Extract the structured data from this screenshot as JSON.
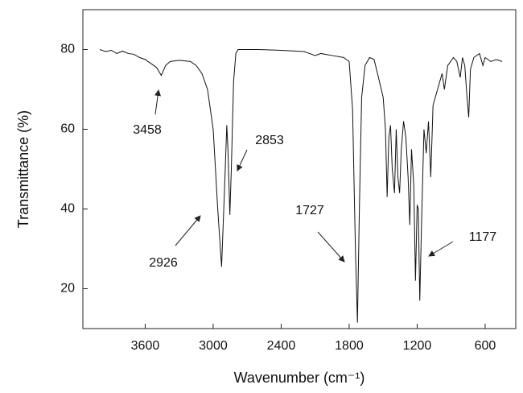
{
  "chart_data": {
    "type": "line",
    "x_label": "Wavenumber (cm⁻¹)",
    "y_label": "Transmittance (%)",
    "xlim": [
      4150,
      330
    ],
    "ylim": [
      10,
      90
    ],
    "xticks": [
      3600,
      3000,
      2400,
      1800,
      1200,
      600
    ],
    "yticks": [
      20,
      40,
      60,
      80
    ],
    "annotations": [
      "3458",
      "2853",
      "2926",
      "1727",
      "1177"
    ],
    "series": [
      {
        "color": "#111111",
        "x": [
          4000,
          3950,
          3900,
          3850,
          3800,
          3750,
          3700,
          3650,
          3600,
          3550,
          3500,
          3458,
          3420,
          3380,
          3300,
          3200,
          3150,
          3100,
          3050,
          3000,
          2960,
          2926,
          2900,
          2880,
          2870,
          2853,
          2840,
          2820,
          2800,
          2780,
          2600,
          2400,
          2200,
          2100,
          2050,
          1950,
          1850,
          1800,
          1770,
          1745,
          1727,
          1710,
          1690,
          1660,
          1620,
          1580,
          1550,
          1500,
          1480,
          1465,
          1450,
          1435,
          1420,
          1400,
          1385,
          1370,
          1355,
          1340,
          1320,
          1300,
          1280,
          1265,
          1250,
          1230,
          1215,
          1200,
          1190,
          1177,
          1160,
          1140,
          1120,
          1100,
          1080,
          1060,
          1020,
          980,
          960,
          930,
          880,
          850,
          820,
          800,
          780,
          760,
          745,
          730,
          700,
          650,
          620,
          600,
          550,
          500,
          450
        ],
        "values": [
          80,
          79.5,
          79.8,
          79,
          79.6,
          79,
          78.8,
          78,
          77.5,
          76.5,
          75.5,
          73.5,
          76,
          77,
          77.3,
          77,
          76,
          74,
          70,
          60,
          40,
          25.5,
          45,
          61,
          55,
          38.5,
          50,
          72,
          79,
          80,
          80,
          79.8,
          79.5,
          78.5,
          79,
          78.5,
          78,
          77,
          65,
          30,
          11.5,
          40,
          68,
          76,
          78,
          77.5,
          74,
          68,
          60,
          43,
          58,
          61,
          50,
          44,
          60,
          48,
          44,
          55,
          62,
          58,
          48,
          36,
          55,
          46,
          22,
          41,
          40,
          17,
          38,
          60,
          54,
          62,
          48,
          66,
          70,
          74,
          70,
          76,
          78,
          77,
          73,
          78,
          76,
          68,
          63,
          75,
          78,
          79,
          76,
          78,
          77,
          77.5,
          77
        ]
      }
    ]
  }
}
